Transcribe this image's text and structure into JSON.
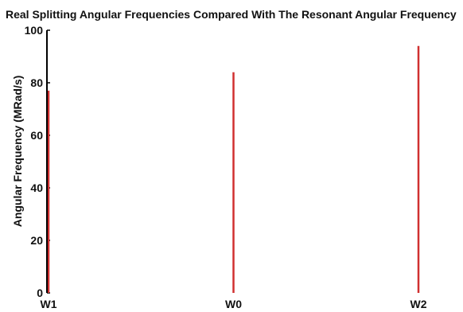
{
  "chart_data": {
    "type": "bar",
    "title": "Real Splitting Angular Frequencies Compared With The Resonant Angular Frequency",
    "xlabel": "",
    "ylabel": "Angular Frequency (MRad/s)",
    "categories": [
      "W1",
      "W0",
      "W2"
    ],
    "values": [
      77,
      84,
      94
    ],
    "ylim": [
      0,
      100
    ],
    "yticks": [
      0,
      20,
      40,
      60,
      80,
      100
    ],
    "grid": false,
    "bar_color": "#d03030",
    "axis_color": "#000000"
  }
}
